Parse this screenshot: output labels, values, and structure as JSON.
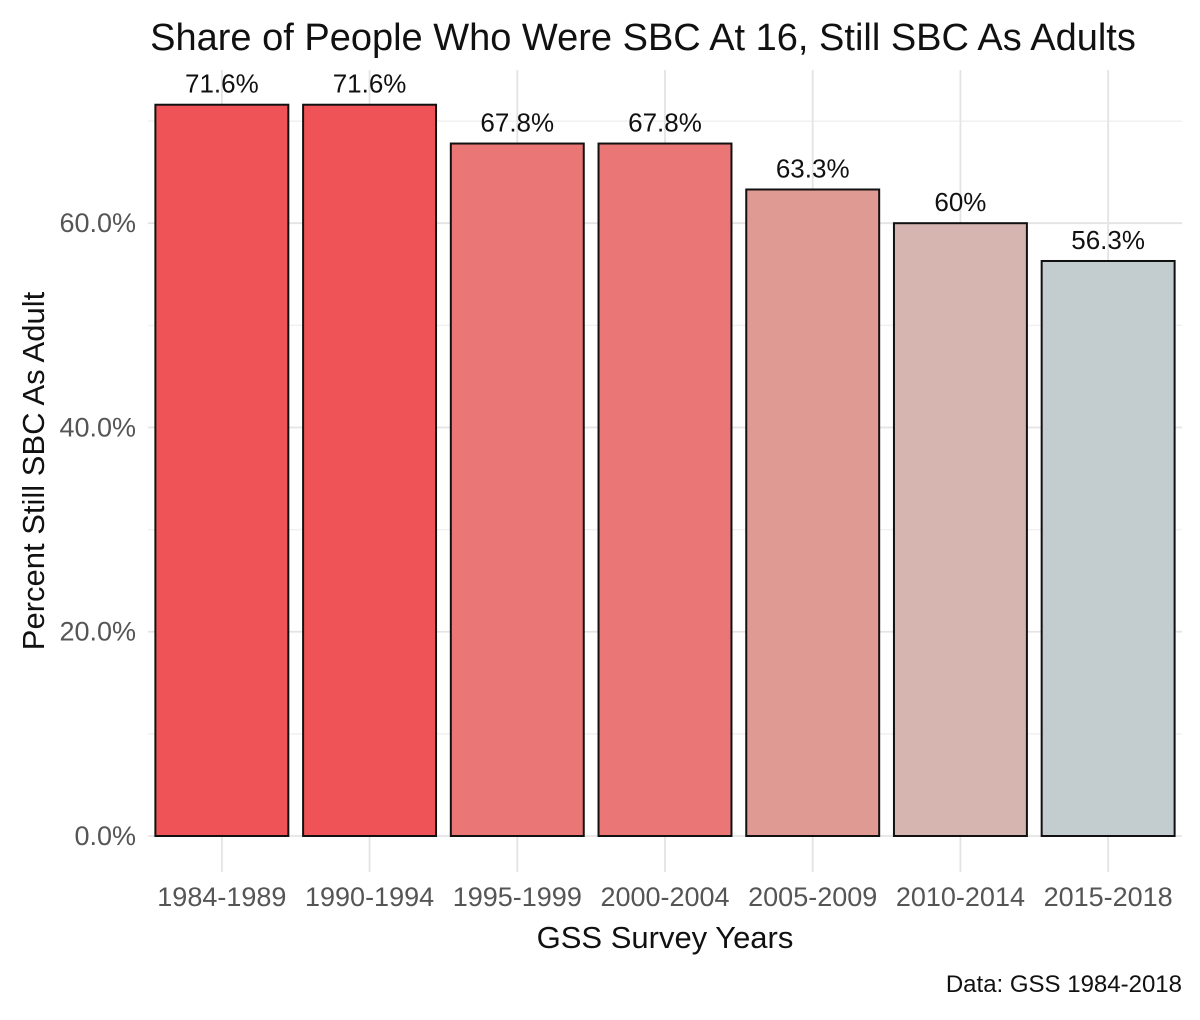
{
  "chart_data": {
    "type": "bar",
    "title": "Share of People Who Were SBC At 16, Still SBC As Adults",
    "xlabel": "GSS Survey Years",
    "ylabel": "Percent Still SBC As Adult",
    "caption": "Data: GSS 1984-2018",
    "categories": [
      "1984-1989",
      "1990-1994",
      "1995-1999",
      "2000-2004",
      "2005-2009",
      "2010-2014",
      "2015-2018"
    ],
    "values": [
      71.6,
      71.6,
      67.8,
      67.8,
      63.3,
      60,
      56.3
    ],
    "value_labels": [
      "71.6%",
      "71.6%",
      "67.8%",
      "67.8%",
      "63.3%",
      "60%",
      "56.3%"
    ],
    "bar_colors": [
      "#EF5357",
      "#EF5357",
      "#EA7775",
      "#EA7775",
      "#E09A94",
      "#D6B5B1",
      "#C3CDCF"
    ],
    "ylim": [
      0,
      75
    ],
    "yticks": [
      0,
      20,
      40,
      60
    ],
    "ytick_labels": [
      "0.0%",
      "20.0%",
      "40.0%",
      "60.0%"
    ],
    "grid": true,
    "legend": "none"
  }
}
